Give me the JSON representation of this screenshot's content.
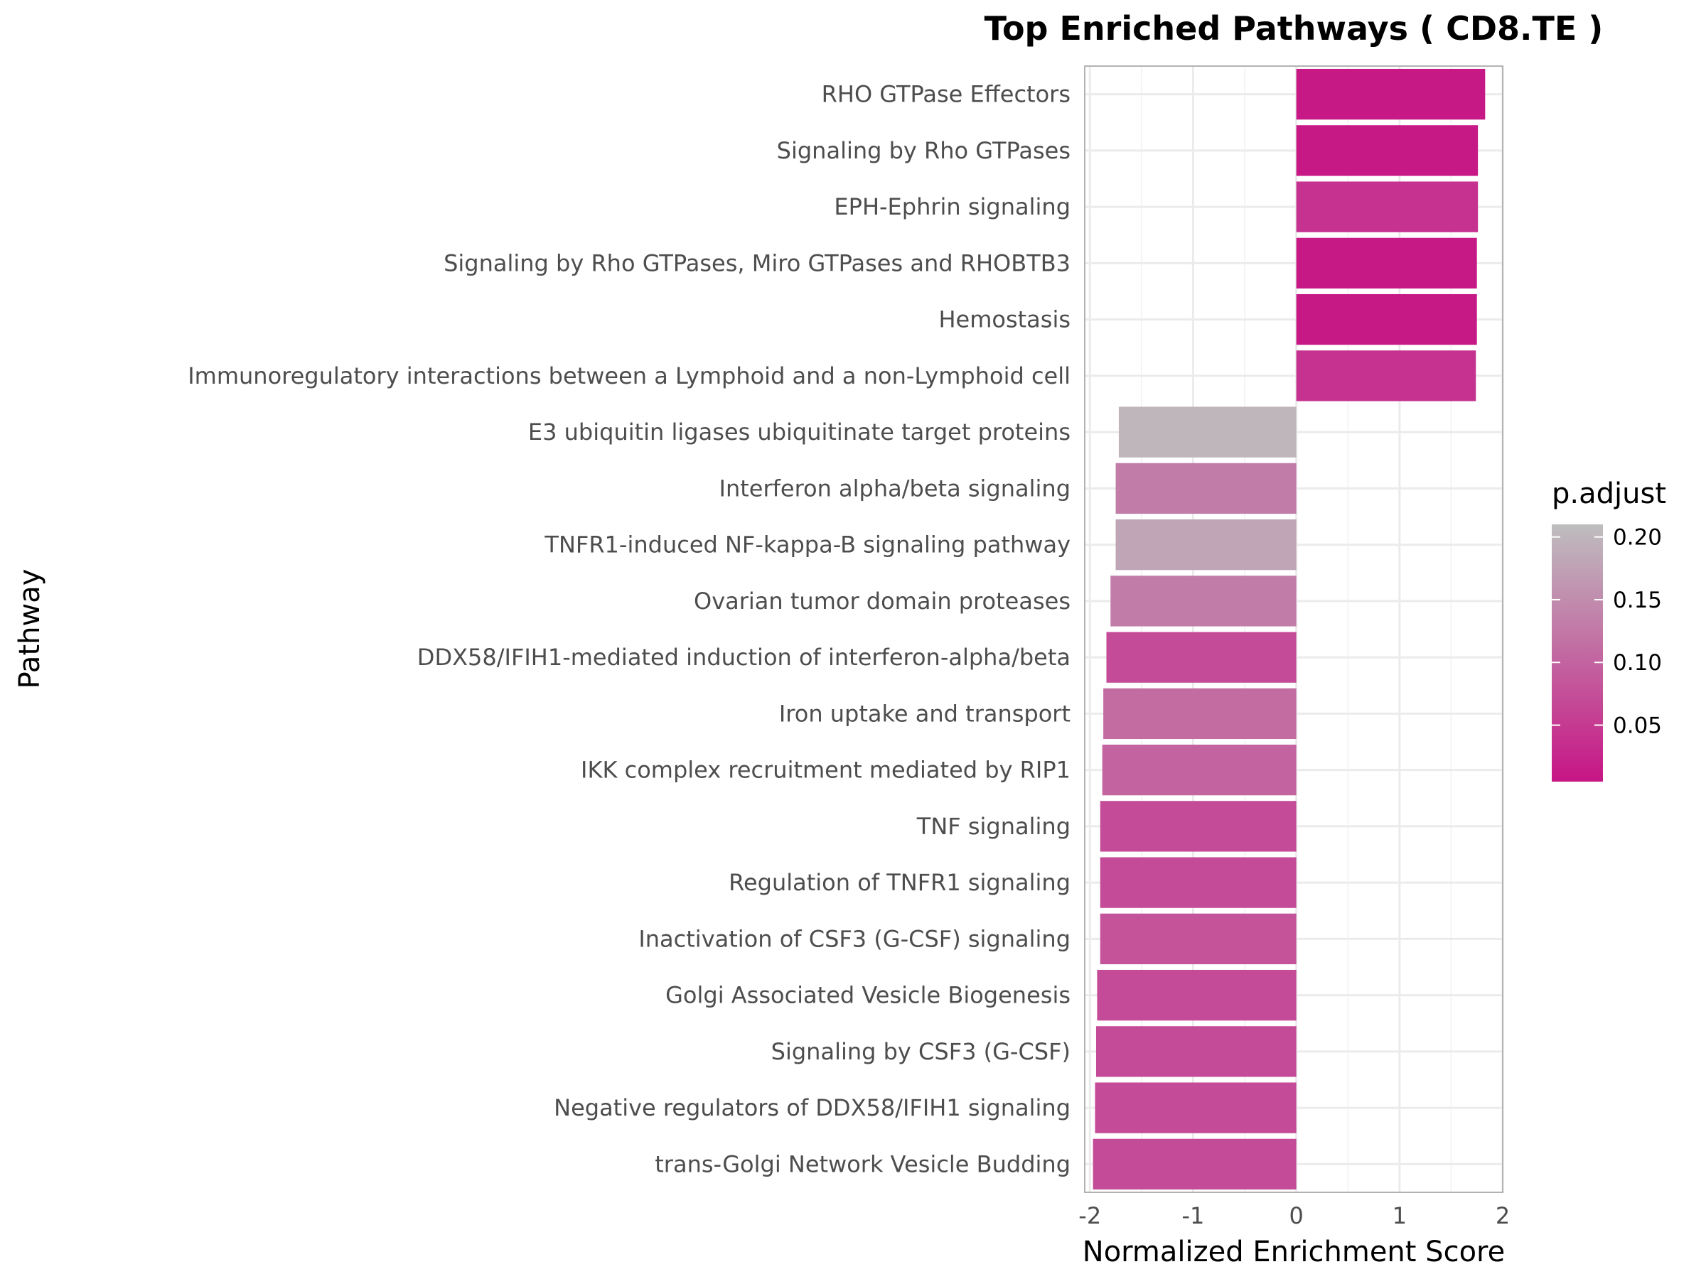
{
  "chart_data": {
    "type": "bar",
    "orientation": "horizontal",
    "title": "Top Enriched Pathways ( CD8.TE )",
    "xlabel": "Normalized Enrichment Score",
    "ylabel": "Pathway",
    "xlim": [
      -2.05,
      2.0
    ],
    "xticks": [
      -2,
      -1,
      0,
      1,
      2
    ],
    "xtick_labels": [
      "-2",
      "-1",
      "0",
      "1",
      "2"
    ],
    "grid": true,
    "legend": {
      "title": "p.adjust",
      "placement": "right",
      "range": [
        0.005,
        0.21
      ],
      "ticks": [
        0.2,
        0.15,
        0.1,
        0.05
      ],
      "tick_labels": [
        "0.20",
        "0.15",
        "0.10",
        "0.05"
      ],
      "color_low": "#C71585",
      "color_high": "#BEBEBE"
    },
    "series": [
      {
        "categories": [
          "RHO GTPase Effectors",
          "Signaling by Rho GTPases",
          "EPH-Ephrin signaling",
          "Signaling by Rho GTPases, Miro GTPases and RHOBTB3",
          "Hemostasis",
          "Immunoregulatory interactions between a Lymphoid and a non-Lymphoid cell",
          "E3 ubiquitin ligases ubiquitinate target proteins",
          "Interferon alpha/beta signaling",
          "TNFR1-induced NF-kappa-B signaling pathway",
          "Ovarian tumor domain proteases",
          "DDX58/IFIH1-mediated induction of interferon-alpha/beta",
          "Iron uptake and transport",
          "IKK complex recruitment mediated by RIP1",
          "TNF signaling",
          "Regulation of TNFR1 signaling",
          "Inactivation of CSF3 (G-CSF) signaling",
          "Golgi Associated Vesicle Biogenesis",
          "Signaling by CSF3 (G-CSF)",
          "Negative regulators of DDX58/IFIH1 signaling",
          "trans-Golgi Network Vesicle Budding"
        ],
        "values": [
          1.83,
          1.76,
          1.76,
          1.75,
          1.75,
          1.74,
          -1.72,
          -1.75,
          -1.75,
          -1.8,
          -1.84,
          -1.87,
          -1.88,
          -1.9,
          -1.9,
          -1.9,
          -1.93,
          -1.94,
          -1.95,
          -1.97
        ],
        "p_adjust": [
          0.01,
          0.01,
          0.04,
          0.01,
          0.01,
          0.04,
          0.2,
          0.13,
          0.18,
          0.13,
          0.07,
          0.11,
          0.1,
          0.07,
          0.07,
          0.08,
          0.07,
          0.07,
          0.07,
          0.07
        ]
      }
    ]
  }
}
